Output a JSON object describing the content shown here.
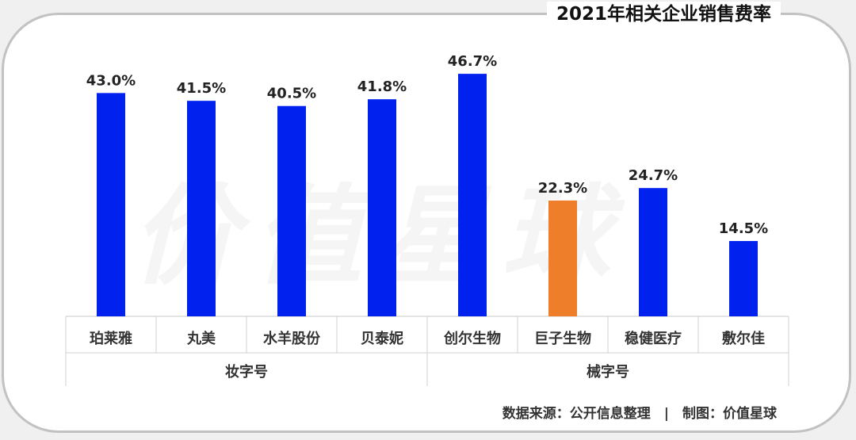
{
  "title": "2021年相关企业销售费率",
  "watermark": "价值星球",
  "source": "数据来源：公开信息整理　|　制图：价值星球",
  "colors": {
    "default_bar": "#0021ee",
    "highlight_bar": "#ef7e2a"
  },
  "chart_data": {
    "type": "bar",
    "categories": [
      "珀莱雅",
      "丸美",
      "水羊股份",
      "贝泰妮",
      "创尔生物",
      "巨子生物",
      "稳健医疗",
      "敷尔佳"
    ],
    "values": [
      43.0,
      41.5,
      40.5,
      41.8,
      46.7,
      22.3,
      24.7,
      14.5
    ],
    "data_labels": [
      "43.0%",
      "41.5%",
      "40.5%",
      "41.8%",
      "46.7%",
      "22.3%",
      "24.7%",
      "14.5%"
    ],
    "highlight_index": 5,
    "groups": [
      {
        "label": "妆字号",
        "categories": [
          "珀莱雅",
          "丸美",
          "水羊股份",
          "贝泰妮"
        ]
      },
      {
        "label": "械字号",
        "categories": [
          "创尔生物",
          "巨子生物",
          "稳健医疗",
          "敷尔佳"
        ]
      }
    ],
    "ylim": [
      0,
      50
    ]
  }
}
